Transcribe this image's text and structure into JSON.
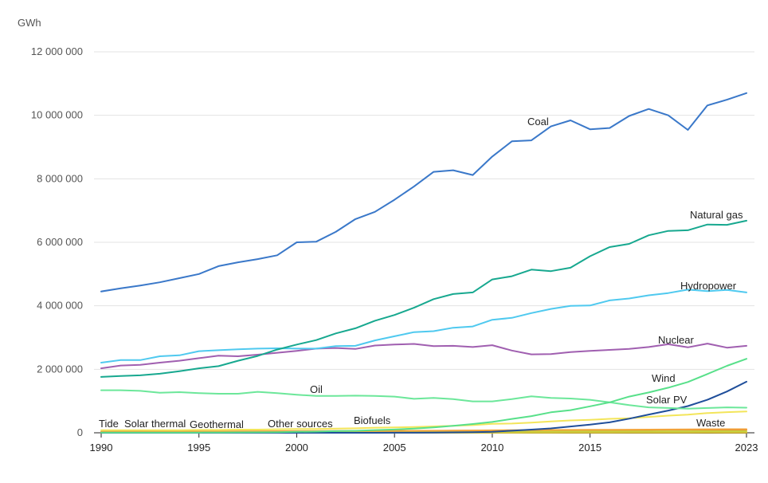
{
  "chart_data": {
    "type": "line",
    "y_unit": "GWh",
    "ylim": [
      0,
      12000000
    ],
    "y_ticks": [
      0,
      2000000,
      4000000,
      6000000,
      8000000,
      10000000,
      12000000
    ],
    "y_tick_labels": [
      "0",
      "2 000 000",
      "4 000 000",
      "6 000 000",
      "8 000 000",
      "10 000 000",
      "12 000 000"
    ],
    "xlim": [
      1990,
      2023
    ],
    "x_ticks": [
      1990,
      1995,
      2000,
      2005,
      2010,
      2015,
      2023
    ],
    "x_tick_labels": [
      "1990",
      "1995",
      "2000",
      "2005",
      "2010",
      "2015",
      "2023"
    ],
    "grid": true,
    "legend": "inline-labels",
    "x": [
      1990,
      1991,
      1992,
      1993,
      1994,
      1995,
      1996,
      1997,
      1998,
      1999,
      2000,
      2001,
      2002,
      2003,
      2004,
      2005,
      2006,
      2007,
      2008,
      2009,
      2010,
      2011,
      2012,
      2013,
      2014,
      2015,
      2016,
      2017,
      2018,
      2019,
      2020,
      2021,
      2022,
      2023
    ],
    "series": [
      {
        "name": "Coal",
        "color": "#3a78c9",
        "values": [
          4450000,
          4550000,
          4640000,
          4740000,
          4870000,
          5000000,
          5250000,
          5370000,
          5470000,
          5590000,
          6000000,
          6020000,
          6330000,
          6730000,
          6960000,
          7340000,
          7760000,
          8220000,
          8270000,
          8120000,
          8700000,
          9180000,
          9210000,
          9650000,
          9840000,
          9560000,
          9600000,
          9980000,
          10200000,
          10000000,
          9540000,
          10310000,
          10490000,
          10700000
        ]
      },
      {
        "name": "Natural gas",
        "color": "#17a88f",
        "values": [
          1760000,
          1790000,
          1810000,
          1860000,
          1940000,
          2030000,
          2100000,
          2270000,
          2420000,
          2620000,
          2780000,
          2920000,
          3130000,
          3290000,
          3530000,
          3710000,
          3940000,
          4210000,
          4370000,
          4420000,
          4830000,
          4930000,
          5140000,
          5090000,
          5200000,
          5560000,
          5850000,
          5950000,
          6220000,
          6360000,
          6380000,
          6560000,
          6550000,
          6680000
        ]
      },
      {
        "name": "Hydropower",
        "color": "#4fc9ef",
        "values": [
          2210000,
          2290000,
          2290000,
          2410000,
          2440000,
          2570000,
          2600000,
          2630000,
          2650000,
          2660000,
          2650000,
          2650000,
          2730000,
          2740000,
          2910000,
          3040000,
          3170000,
          3200000,
          3310000,
          3350000,
          3560000,
          3620000,
          3770000,
          3900000,
          4000000,
          4010000,
          4170000,
          4230000,
          4330000,
          4400000,
          4510000,
          4460000,
          4500000,
          4420000
        ]
      },
      {
        "name": "Nuclear",
        "color": "#a05fb0",
        "values": [
          2030000,
          2120000,
          2140000,
          2210000,
          2270000,
          2350000,
          2430000,
          2410000,
          2460000,
          2520000,
          2580000,
          2650000,
          2670000,
          2640000,
          2750000,
          2780000,
          2800000,
          2730000,
          2740000,
          2700000,
          2760000,
          2590000,
          2470000,
          2480000,
          2540000,
          2580000,
          2610000,
          2640000,
          2700000,
          2790000,
          2690000,
          2810000,
          2680000,
          2740000
        ]
      },
      {
        "name": "Wind",
        "color": "#58e08a",
        "values": [
          3900,
          4100,
          4700,
          5700,
          7000,
          8300,
          9300,
          12000,
          16000,
          21000,
          31000,
          38000,
          52000,
          63000,
          85000,
          104000,
          133000,
          171000,
          221000,
          276000,
          342000,
          438000,
          525000,
          645000,
          712000,
          833000,
          960000,
          1140000,
          1270000,
          1420000,
          1600000,
          1850000,
          2110000,
          2330000
        ]
      },
      {
        "name": "Oil",
        "color": "#6ce79a",
        "values": [
          1340000,
          1340000,
          1320000,
          1260000,
          1280000,
          1250000,
          1230000,
          1230000,
          1290000,
          1250000,
          1200000,
          1160000,
          1160000,
          1170000,
          1160000,
          1140000,
          1070000,
          1100000,
          1060000,
          990000,
          990000,
          1060000,
          1150000,
          1100000,
          1080000,
          1040000,
          960000,
          870000,
          800000,
          780000,
          760000,
          780000,
          800000,
          790000
        ]
      },
      {
        "name": "Solar PV",
        "color": "#1f4e9a",
        "values": [
          90,
          100,
          110,
          120,
          130,
          150,
          170,
          200,
          240,
          300,
          400,
          500,
          700,
          900,
          1200,
          1600,
          2700,
          4000,
          12000,
          20000,
          32000,
          65000,
          100000,
          139000,
          198000,
          256000,
          329000,
          445000,
          575000,
          700000,
          840000,
          1040000,
          1300000,
          1610000
        ]
      },
      {
        "name": "Biofuels",
        "color": "#f3e55a",
        "values": [
          80000,
          80000,
          80000,
          80000,
          80000,
          90000,
          90000,
          100000,
          100000,
          110000,
          120000,
          120000,
          130000,
          140000,
          160000,
          170000,
          180000,
          200000,
          220000,
          240000,
          280000,
          290000,
          320000,
          360000,
          390000,
          410000,
          440000,
          460000,
          500000,
          540000,
          570000,
          620000,
          650000,
          670000
        ]
      },
      {
        "name": "Waste",
        "color": "#f2a53a",
        "values": [
          22000,
          24000,
          26000,
          30000,
          32000,
          35000,
          38000,
          40000,
          42000,
          44000,
          48000,
          50000,
          52000,
          55000,
          57000,
          60000,
          63000,
          66000,
          70000,
          73000,
          78000,
          82000,
          85000,
          88000,
          91000,
          93000,
          96000,
          99000,
          101000,
          104000,
          106000,
          111000,
          112000,
          113000
        ]
      },
      {
        "name": "Other sources",
        "color": "#c7cf3f",
        "values": [
          15000,
          15000,
          16000,
          17000,
          18000,
          19000,
          20000,
          21000,
          22000,
          23000,
          24000,
          25000,
          26000,
          27000,
          28000,
          29000,
          30000,
          31000,
          32000,
          33000,
          35000,
          37000,
          39000,
          40000,
          42000,
          43000,
          44000,
          45000,
          46000,
          47000,
          48000,
          49000,
          50000,
          51000
        ]
      },
      {
        "name": "Geothermal",
        "color": "#e07b2a",
        "values": [
          36000,
          38000,
          39000,
          40000,
          40000,
          40000,
          42000,
          44000,
          46000,
          49000,
          52000,
          53000,
          54000,
          55000,
          56000,
          58000,
          59000,
          61000,
          65000,
          67000,
          68000,
          69000,
          70000,
          71000,
          77000,
          80000,
          82000,
          85000,
          89000,
          92000,
          93000,
          95000,
          96000,
          97000
        ]
      },
      {
        "name": "Solar thermal",
        "color": "#d6c43a",
        "values": [
          660,
          900,
          950,
          1000,
          1000,
          1000,
          1000,
          1000,
          1000,
          900,
          900,
          900,
          900,
          900,
          900,
          900,
          900,
          900,
          900,
          900,
          1600,
          2000,
          4800,
          6000,
          9000,
          9500,
          10900,
          11700,
          12800,
          13700,
          13600,
          14100,
          13300,
          13500
        ]
      },
      {
        "name": "Tide",
        "color": "#8a6d1a",
        "values": [
          600,
          600,
          600,
          600,
          600,
          600,
          600,
          600,
          600,
          600,
          600,
          600,
          600,
          600,
          600,
          600,
          600,
          600,
          600,
          600,
          600,
          600,
          1000,
          1000,
          1000,
          1000,
          1000,
          1000,
          1000,
          1000,
          1000,
          1000,
          1000,
          1000
        ]
      }
    ]
  }
}
